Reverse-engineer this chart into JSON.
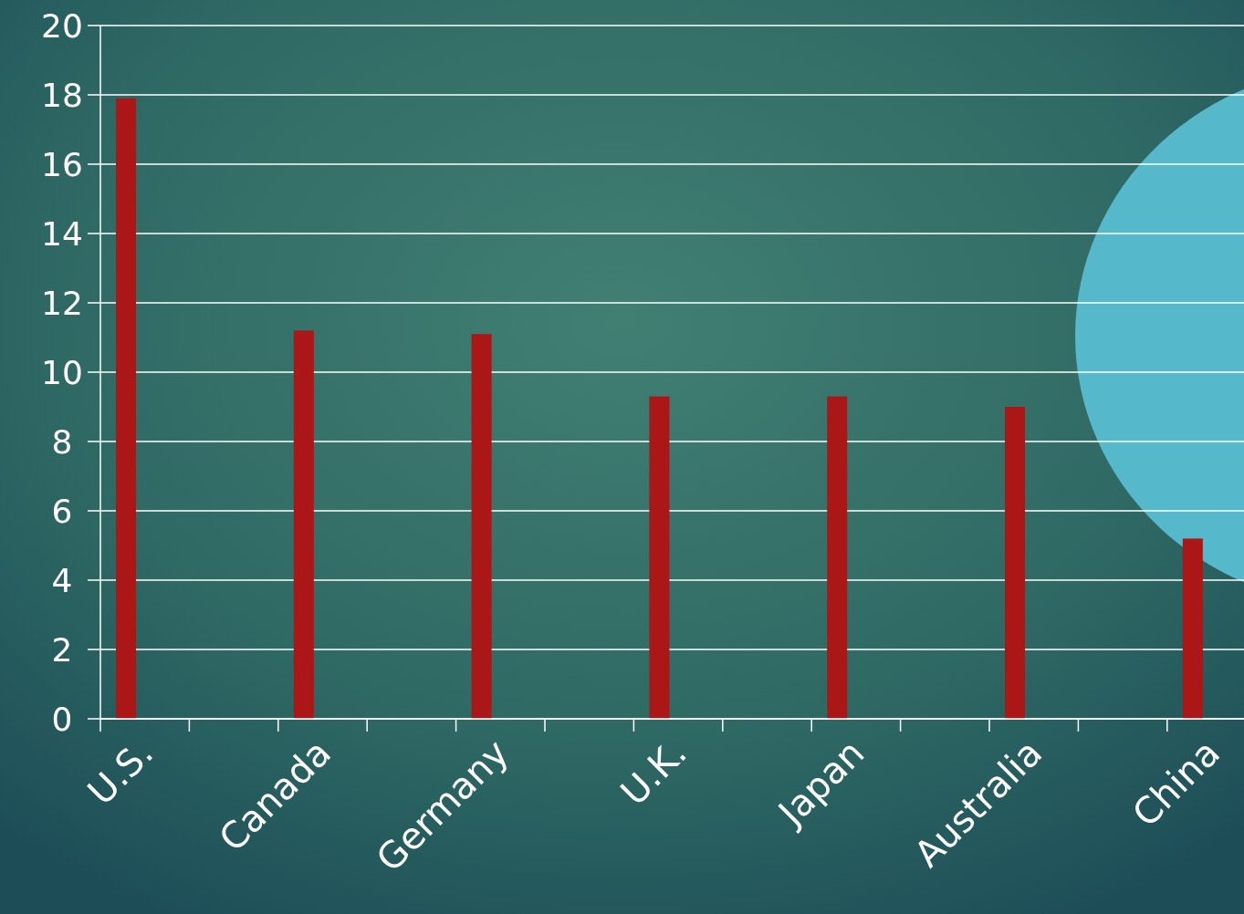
{
  "chart_data": {
    "type": "bar",
    "categories": [
      "U.S.",
      "Canada",
      "Germany",
      "U.K.",
      "Japan",
      "Australia",
      "China"
    ],
    "values": [
      17.9,
      11.2,
      11.1,
      9.3,
      9.3,
      9.0,
      5.2
    ],
    "color": "#ab1616",
    "ylim": [
      0,
      20
    ],
    "yticks": [
      0,
      2,
      4,
      6,
      8,
      10,
      12,
      14,
      16,
      18,
      20
    ],
    "grid": true
  }
}
